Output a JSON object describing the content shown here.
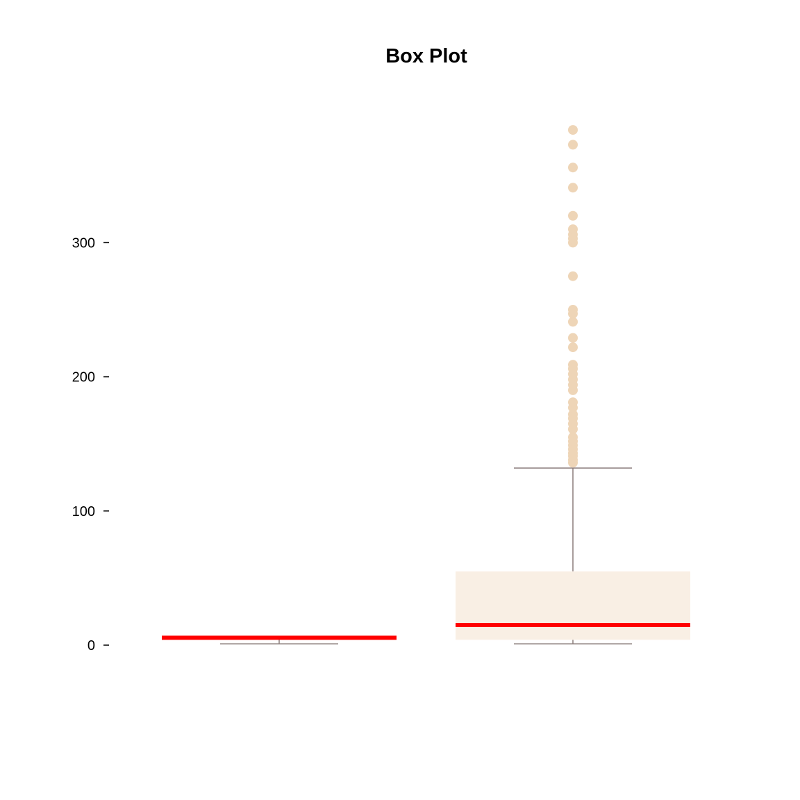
{
  "chart_data": {
    "type": "box",
    "title": "Box Plot",
    "xlabel": "",
    "ylabel": "",
    "ylim": [
      -10,
      400
    ],
    "y_ticks": [
      0,
      100,
      200,
      300
    ],
    "y_tick_labels": [
      "0",
      "100",
      "200",
      "300"
    ],
    "grid": false,
    "legend": "none",
    "colors": {
      "box_fill": "#F9EFE4",
      "median": "#FF0000",
      "whisker": "#8B7D7B",
      "outlier": "#EED5B7",
      "tick": "#000000",
      "text": "#000000"
    },
    "boxes": [
      {
        "min": 1,
        "q1": 5,
        "median": 5.5,
        "q3": 6,
        "max": 6,
        "outliers": []
      },
      {
        "min": 1,
        "q1": 4,
        "median": 15,
        "q3": 55,
        "max": 132,
        "outliers": [
          136,
          138,
          141,
          143,
          146,
          149,
          152,
          155,
          161,
          165,
          169,
          172,
          177,
          181,
          190,
          194,
          198,
          202,
          206,
          209,
          222,
          229,
          241,
          247,
          250,
          275,
          300,
          303,
          306,
          310,
          320,
          341,
          356,
          373,
          384
        ]
      }
    ]
  }
}
